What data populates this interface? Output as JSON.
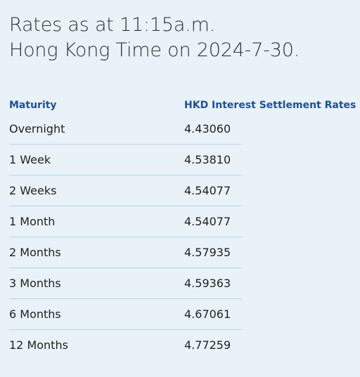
{
  "heading": {
    "line1": "Rates as at 11:15a.m.",
    "line2": "Hong Kong Time on 2024-7-30."
  },
  "table": {
    "headers": {
      "maturity": "Maturity",
      "rate": "HKD Interest Settlement Rates"
    },
    "rows": [
      {
        "maturity": "Overnight",
        "rate": "4.43060"
      },
      {
        "maturity": "1 Week",
        "rate": "4.53810"
      },
      {
        "maturity": "2 Weeks",
        "rate": "4.54077"
      },
      {
        "maturity": "1 Month",
        "rate": "4.54077"
      },
      {
        "maturity": "2 Months",
        "rate": "4.57935"
      },
      {
        "maturity": "3 Months",
        "rate": "4.59363"
      },
      {
        "maturity": "6 Months",
        "rate": "4.67061"
      },
      {
        "maturity": "12 Months",
        "rate": "4.77259"
      }
    ]
  },
  "colors": {
    "background": "#e8f2f8",
    "header_text": "#1f4f9c",
    "divider": "#b9d5e6"
  }
}
